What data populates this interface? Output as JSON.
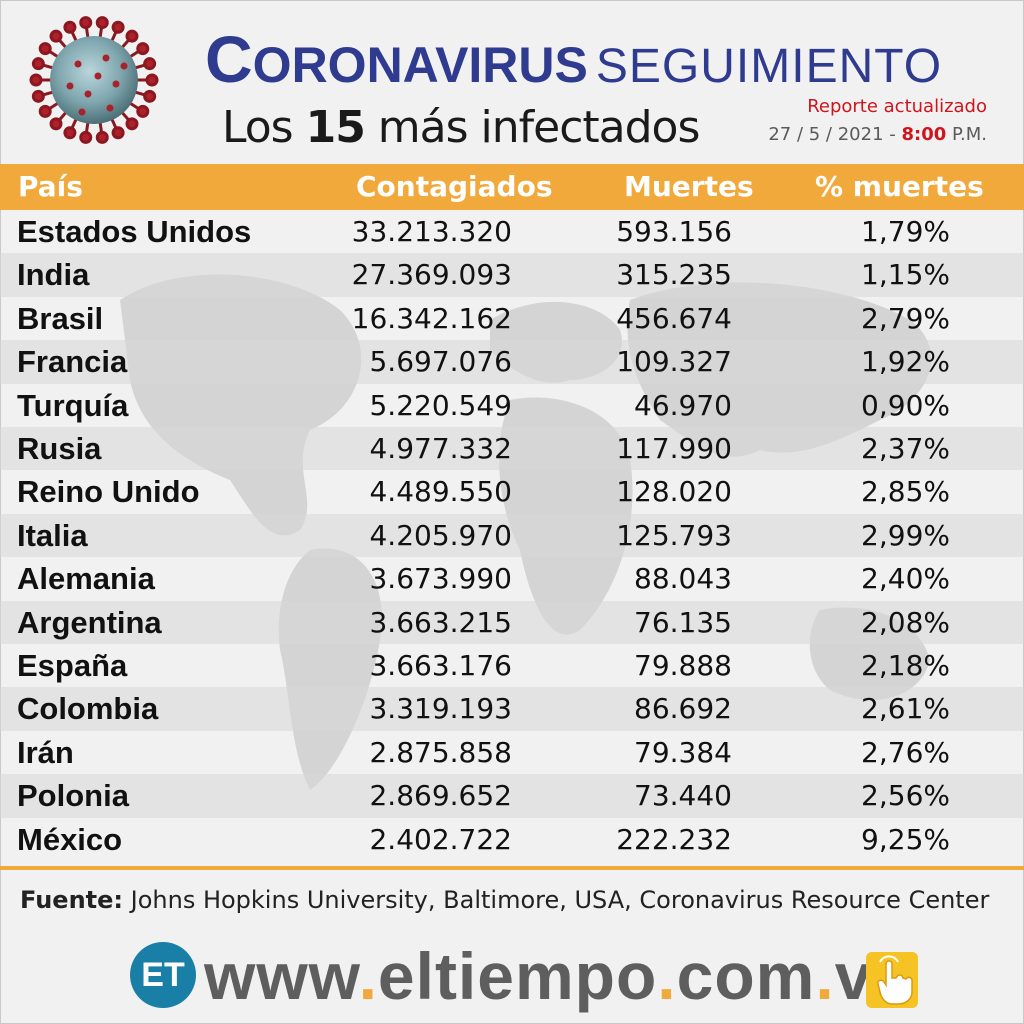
{
  "header": {
    "title_main": "CORONAVIRUS",
    "title_secondary": "SEGUIMIENTO",
    "subtitle_number": "15",
    "subtitle_pre": "Los ",
    "subtitle_post": " más infectados",
    "report_label": "Reporte actualizado",
    "report_date": "27 / 5 / 2021 - ",
    "report_time": "8:00",
    "report_ampm": " P.M."
  },
  "table": {
    "columns": [
      "País",
      "Contagiados",
      "Muertes",
      "% muertes"
    ],
    "rows": [
      [
        "Estados Unidos",
        "33.213.320",
        "593.156",
        "1,79%"
      ],
      [
        "India",
        "27.369.093",
        "315.235",
        "1,15%"
      ],
      [
        "Brasil",
        "16.342.162",
        "456.674",
        "2,79%"
      ],
      [
        "Francia",
        "5.697.076",
        "109.327",
        "1,92%"
      ],
      [
        "Turquía",
        "5.220.549",
        "46.970",
        "0,90%"
      ],
      [
        "Rusia",
        "4.977.332",
        "117.990",
        "2,37%"
      ],
      [
        "Reino Unido",
        "4.489.550",
        "128.020",
        "2,85%"
      ],
      [
        "Italia",
        "4.205.970",
        "125.793",
        "2,99%"
      ],
      [
        "Alemania",
        "3.673.990",
        "88.043",
        "2,40%"
      ],
      [
        "Argentina",
        "3.663.215",
        "76.135",
        "2,08%"
      ],
      [
        "España",
        "3.663.176",
        "79.888",
        "2,18%"
      ],
      [
        "Colombia",
        "3.319.193",
        "86.692",
        "2,61%"
      ],
      [
        "Irán",
        "2.875.858",
        "79.384",
        "2,76%"
      ],
      [
        "Polonia",
        "2.869.652",
        "73.440",
        "2,56%"
      ],
      [
        "México",
        "2.402.722",
        "222.232",
        "9,25%"
      ]
    ]
  },
  "source": {
    "label": "Fuente:",
    "text": " Johns Hopkins University, Baltimore, USA, Coronavirus Resource Center"
  },
  "footer": {
    "logo_text": "ET",
    "url_parts": [
      "www",
      ".",
      "eltiempo",
      ".",
      "com",
      ".",
      "ve"
    ]
  },
  "colors": {
    "header_bar": "#f2a93b",
    "title_blue": "#2e3b8f",
    "accent_red": "#d0141c",
    "logo_blue": "#1a7fa6"
  },
  "icons": [
    "coronavirus-icon",
    "world-map-icon",
    "pointer-hand-icon"
  ]
}
